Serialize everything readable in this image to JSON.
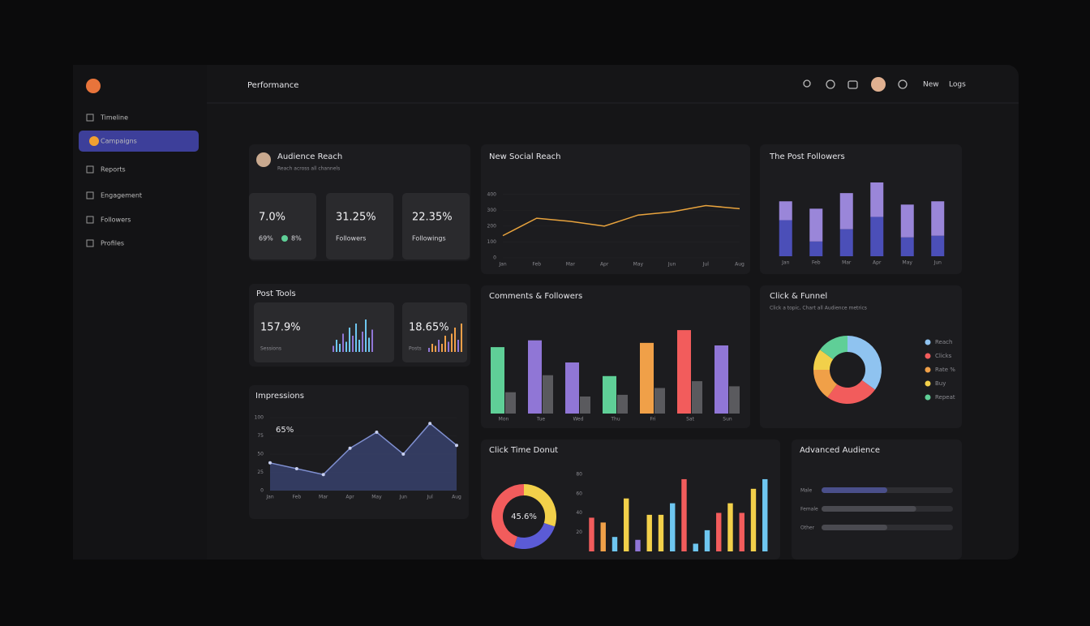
{
  "sidebar": {
    "items": [
      "Timeline",
      "Campaigns",
      "Reports",
      "Engagement",
      "Followers",
      "Profiles"
    ],
    "active": 1
  },
  "header": {
    "title": "Performance",
    "actions": [
      "New",
      "Logs"
    ]
  },
  "reach": {
    "title": "Audience Reach",
    "subtitle": "Reach across all channels",
    "cards": [
      {
        "value": "7.0%",
        "caption": "69%",
        "caption2": "8%"
      },
      {
        "value": "31.25%",
        "caption": "Followers"
      },
      {
        "value": "22.35%",
        "caption": "Followings"
      }
    ]
  },
  "social_reach": {
    "type": "line",
    "title": "New Social Reach",
    "color": "#e8a33d",
    "categories": [
      "Jan",
      "Feb",
      "Mar",
      "Apr",
      "May",
      "Jun",
      "Jul",
      "Aug"
    ],
    "values": [
      140,
      250,
      230,
      200,
      270,
      290,
      330,
      310
    ],
    "ylim": [
      0,
      450
    ],
    "yticks": [
      0,
      100,
      200,
      300,
      400
    ]
  },
  "post_followers": {
    "type": "stacked_bar",
    "title": "The Post Followers",
    "categories": [
      "Jan",
      "Feb",
      "Mar",
      "Apr",
      "May",
      "Jun"
    ],
    "series": [
      {
        "color": "#4b4fb8",
        "values": [
          44,
          18,
          33,
          48,
          23,
          25
        ]
      },
      {
        "color": "#9a86d9",
        "values": [
          23,
          40,
          44,
          42,
          40,
          42
        ]
      }
    ],
    "ylim": [
      0,
      90
    ]
  },
  "post_tools": {
    "title": "Post Tools",
    "cards": [
      {
        "value": "157.9%",
        "caption": "Sessions"
      },
      {
        "value": "18.65%",
        "caption": "Posts"
      }
    ]
  },
  "comments": {
    "type": "grouped_bar",
    "title": "Comments & Followers",
    "categories": [
      "Mon",
      "Tue",
      "Wed",
      "Thu",
      "Fri",
      "Sat",
      "Sun"
    ],
    "colors": [
      "#5fcf97",
      "#9076d6",
      "#9076d6",
      "#5fcf97",
      "#f0a048",
      "#f25c5c",
      "#9076d6"
    ],
    "series": [
      {
        "values": [
          78,
          86,
          60,
          44,
          83,
          98,
          80
        ]
      },
      {
        "color": "#5a5a5e",
        "values": [
          25,
          45,
          20,
          22,
          30,
          38,
          32
        ]
      }
    ],
    "ylim": [
      0,
      100
    ]
  },
  "funnel": {
    "type": "donut",
    "title": "Click & Funnel",
    "subtitle": "Click a topic, Chart all Audience metrics",
    "labels": [
      "Reach",
      "Clicks",
      "Rate %",
      "Buy",
      "Repeat"
    ],
    "colors": [
      "#8fc3f0",
      "#f25c5c",
      "#f0a048",
      "#f2d04a",
      "#5fcf97"
    ],
    "values": [
      35,
      25,
      15,
      10,
      15
    ]
  },
  "impressions": {
    "type": "area",
    "title": "Impressions",
    "annotation": "65%",
    "color": "#7f8fd0",
    "categories": [
      "Jan",
      "Feb",
      "Mar",
      "Apr",
      "May",
      "Jun",
      "Jul",
      "Aug"
    ],
    "values": [
      38,
      30,
      22,
      58,
      80,
      50,
      92,
      62
    ],
    "ylim": [
      0,
      100
    ],
    "yticks": [
      0,
      25,
      50,
      75,
      100
    ]
  },
  "click_time": {
    "type": "donut",
    "title": "Click Time Donut",
    "center_label": "45.6%",
    "colors": [
      "#f2d04a",
      "#5b5bd6",
      "#f25c5c"
    ],
    "values": [
      30,
      25,
      45
    ],
    "bars": {
      "type": "bar",
      "values": [
        35,
        30,
        15,
        55,
        12,
        38,
        38,
        50,
        75,
        8,
        22,
        40,
        50,
        40,
        65,
        75
      ],
      "colors": [
        "#f25c5c",
        "#f0a048",
        "#6ec6f0",
        "#f2d04a",
        "#9076d6",
        "#f2d04a",
        "#f2d04a",
        "#6ec6f0",
        "#f25c5c",
        "#6ec6f0",
        "#6ec6f0",
        "#f25c5c",
        "#f2d04a",
        "#f25c5c",
        "#f2d04a",
        "#6ec6f0"
      ],
      "ylim": [
        0,
        80
      ],
      "yticks": [
        20,
        40,
        60,
        80
      ]
    }
  },
  "audience": {
    "title": "Advanced Audience",
    "labels": [
      "Male",
      "Female",
      "Other"
    ],
    "values": [
      50,
      72,
      50
    ],
    "max": 100
  }
}
